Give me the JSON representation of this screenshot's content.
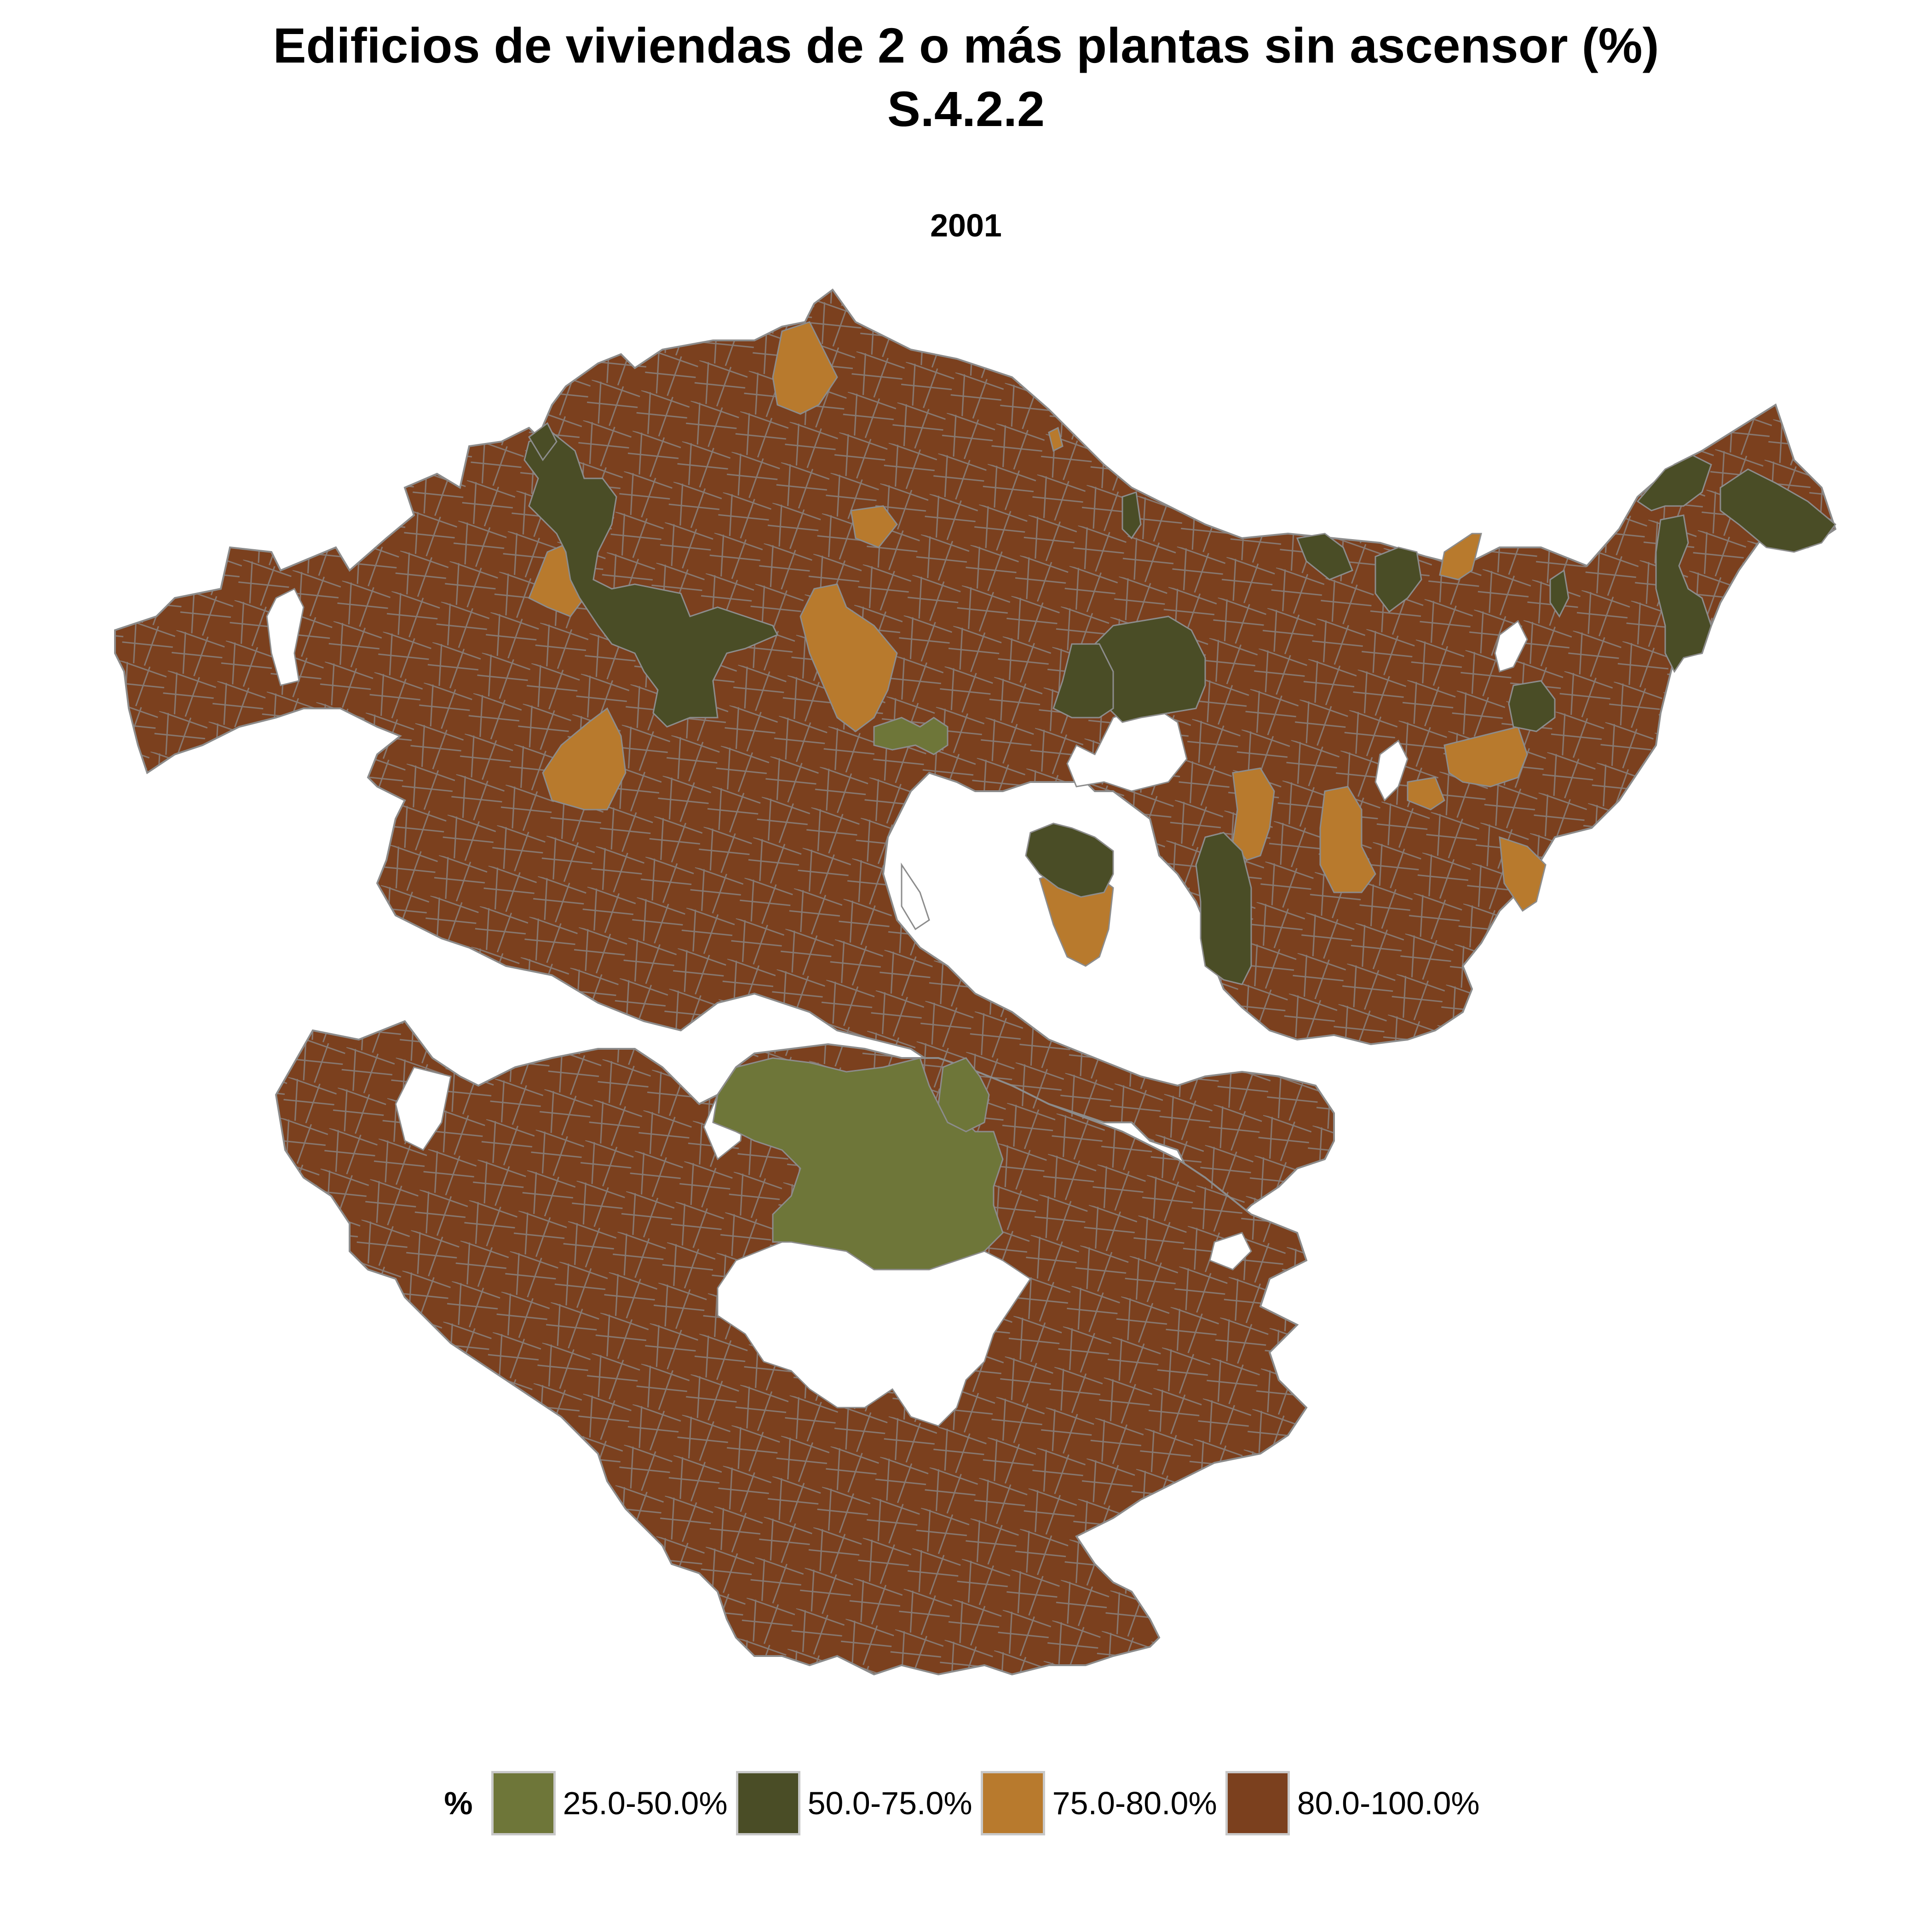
{
  "title": {
    "line1": "Edificios de viviendas de 2 o más plantas sin ascensor (%)",
    "line2": "S.4.2.2"
  },
  "panel": "2001",
  "legend": {
    "title": "%",
    "items": [
      {
        "label": "25.0-50.0%",
        "color": "#6e7639"
      },
      {
        "label": "50.0-75.0%",
        "color": "#4a4d26"
      },
      {
        "label": "75.0-80.0%",
        "color": "#b87a2d"
      },
      {
        "label": "80.0-100.0%",
        "color": "#7b401e"
      }
    ]
  },
  "map": {
    "region": "Euskadi municipalities",
    "fill_default": "#7b401e",
    "border_color": "#8c8c8c"
  }
}
